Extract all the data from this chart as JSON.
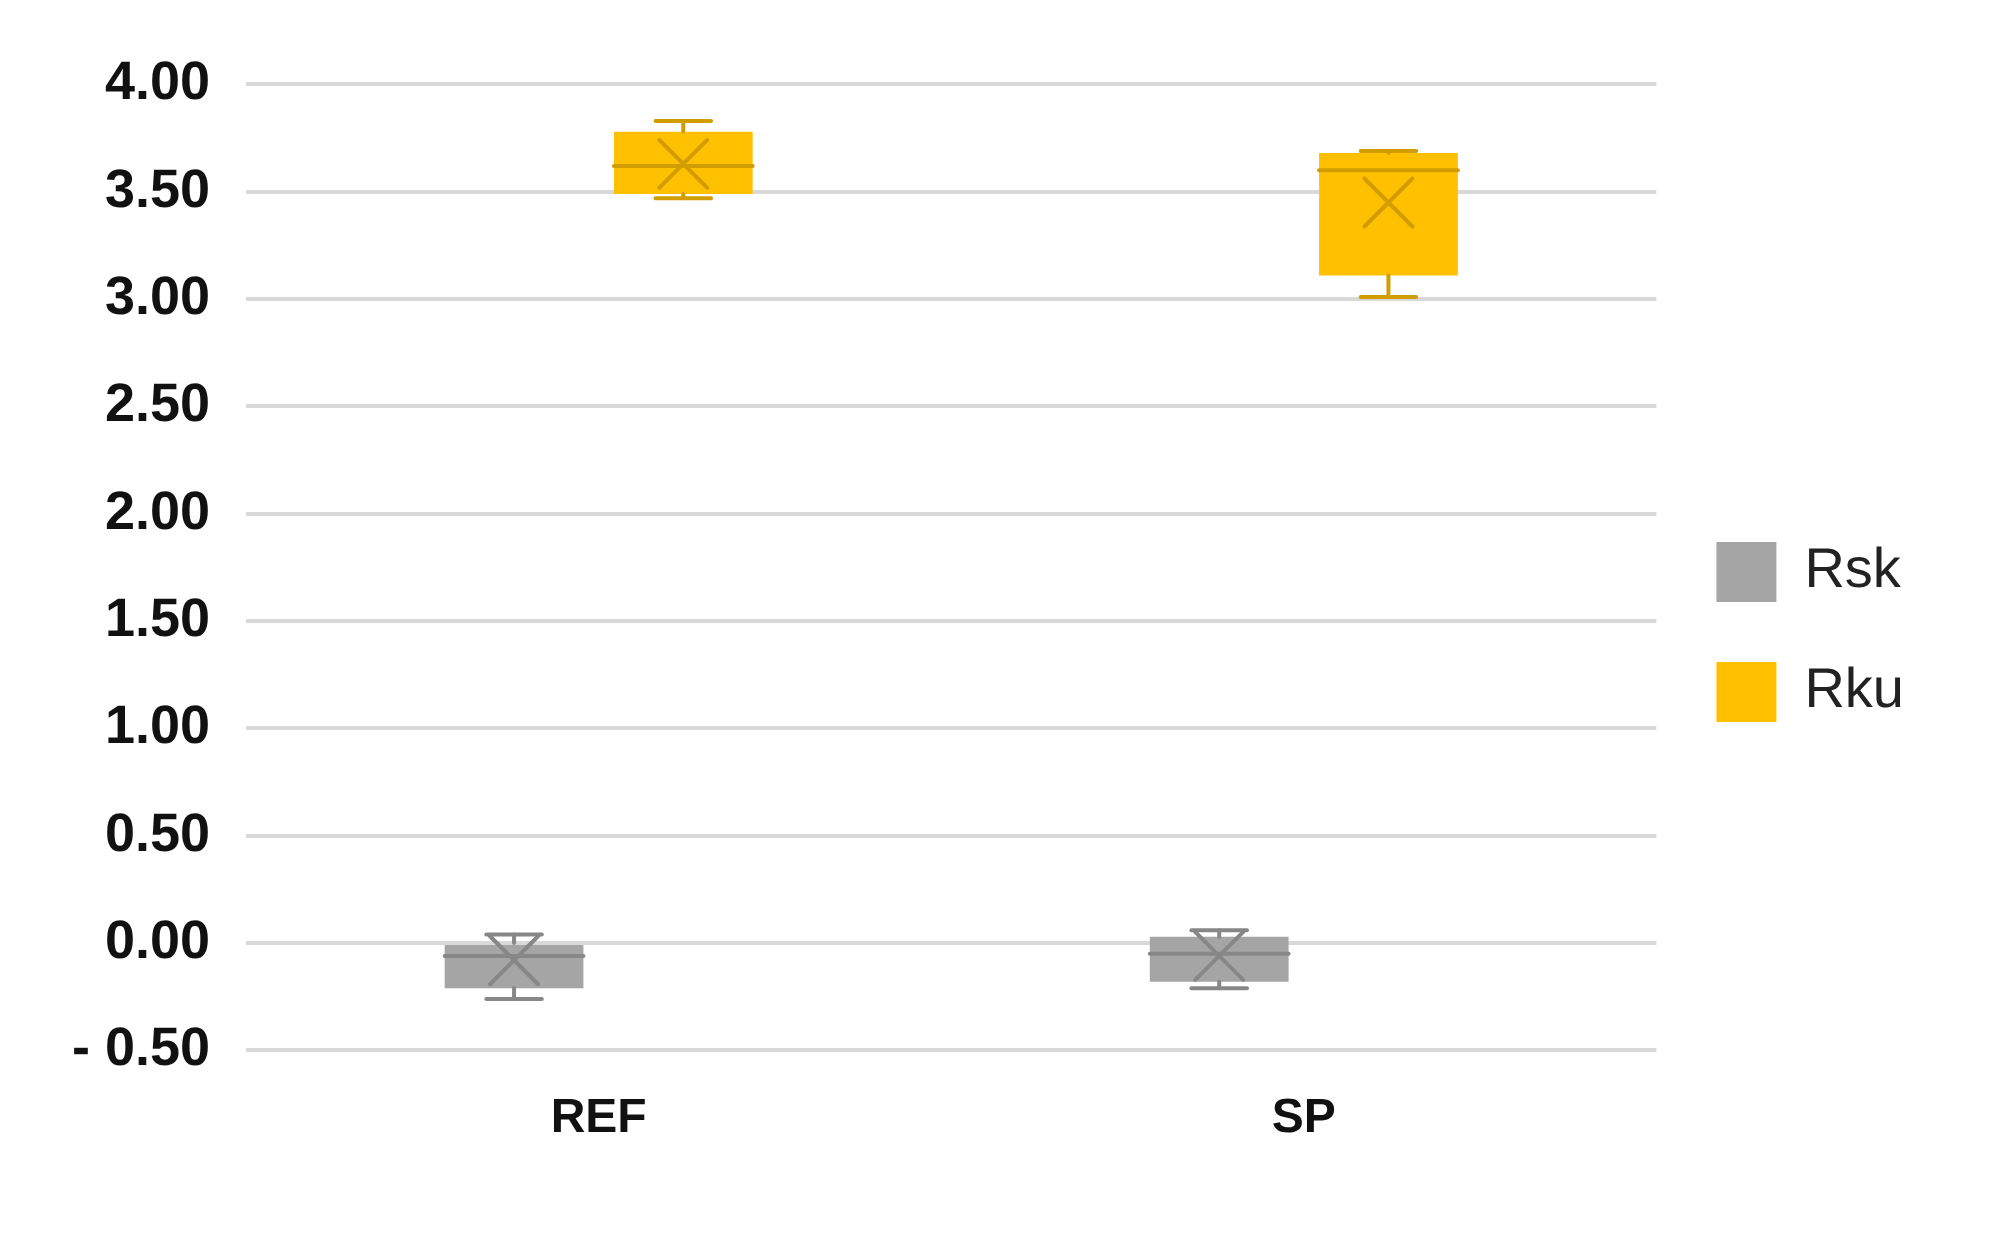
{
  "chart_data": {
    "type": "box",
    "categories": [
      "REF",
      "SP"
    ],
    "series": [
      {
        "name": "Rsk",
        "color": "#a5a5a5",
        "boxes": [
          {
            "low": -0.26,
            "q1": -0.21,
            "median": -0.06,
            "q3": 0.0,
            "high": 0.04,
            "mean": -0.08
          },
          {
            "low": -0.21,
            "q1": -0.18,
            "median": -0.05,
            "q3": 0.03,
            "high": 0.06,
            "mean": -0.06
          }
        ]
      },
      {
        "name": "Rku",
        "color": "#ffc000",
        "boxes": [
          {
            "low": 3.47,
            "q1": 3.49,
            "median": 3.62,
            "q3": 3.78,
            "high": 3.83,
            "mean": 3.63
          },
          {
            "low": 3.01,
            "q1": 3.11,
            "median": 3.6,
            "q3": 3.68,
            "high": 3.69,
            "mean": 3.45
          }
        ]
      }
    ],
    "ylim": [
      -0.5,
      4.0
    ],
    "yticks": [
      {
        "value": -0.5,
        "label": "- 0.50"
      },
      {
        "value": 0,
        "label": "0.00"
      },
      {
        "value": 0.5,
        "label": "0.50"
      },
      {
        "value": 1,
        "label": "1.00"
      },
      {
        "value": 1.5,
        "label": "1.50"
      },
      {
        "value": 2,
        "label": "2.00"
      },
      {
        "value": 2.5,
        "label": "2.50"
      },
      {
        "value": 3,
        "label": "3.00"
      },
      {
        "value": 3.5,
        "label": "3.50"
      },
      {
        "value": 4,
        "label": "4.00"
      }
    ],
    "grid": "y",
    "legend": "right"
  }
}
